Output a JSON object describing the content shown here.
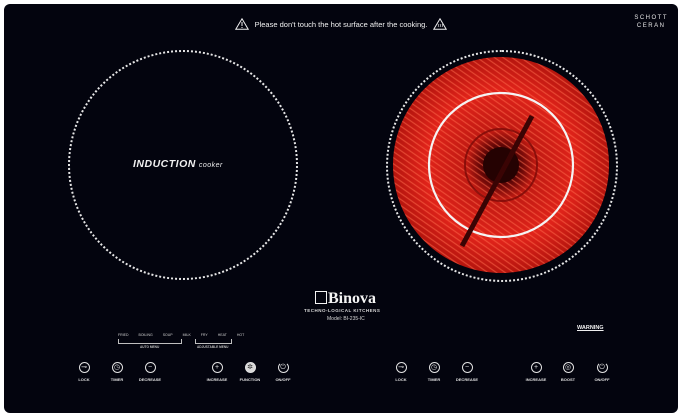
{
  "header": {
    "warning_text": "Please don't touch the hot surface after the cooking.",
    "left_warning_icon": "warning-triangle-icon",
    "right_warning_icon": "hot-surface-icon"
  },
  "schott": {
    "line1": "SCHOTT",
    "line2": "CERAN"
  },
  "zones": {
    "left": {
      "label_main": "INDUCTION",
      "label_sub": "cooker",
      "ring_color": "#e6e6e6"
    },
    "right": {
      "type": "infrared",
      "glow_color": "#e0231a",
      "ring_color": "#e6e6e6"
    }
  },
  "brand": {
    "name": "Binova",
    "tagline": "TECHNO-LOGICAL KITCHENS",
    "model": "Model: BI-235-IC"
  },
  "warning_mark": "WARNING",
  "modes_left": {
    "items": [
      "FRIED",
      "BOILING",
      "SOUP",
      "MILK",
      "FRY",
      "HEAT",
      "HOT"
    ],
    "auto_note": "AUTO MENU",
    "adjust_note": "ADJUSTABLE MENU"
  },
  "controls_left": [
    {
      "label": "LOCK",
      "icon": "lock-icon"
    },
    {
      "label": "TIMER",
      "icon": "clock-icon"
    },
    {
      "label": "DECREASE",
      "icon": "minus-icon"
    },
    {
      "label": "INCREASE",
      "icon": "plus-icon"
    },
    {
      "label": "FUNCTION",
      "icon": "function-icon"
    },
    {
      "label": "ON/OFF",
      "icon": "power-icon"
    }
  ],
  "controls_right": [
    {
      "label": "LOCK",
      "icon": "lock-icon"
    },
    {
      "label": "TIMER",
      "icon": "clock-icon"
    },
    {
      "label": "DECREASE",
      "icon": "minus-icon"
    },
    {
      "label": "INCREASE",
      "icon": "plus-icon"
    },
    {
      "label": "BOOST",
      "icon": "boost-icon"
    },
    {
      "label": "ON/OFF",
      "icon": "power-icon"
    }
  ]
}
